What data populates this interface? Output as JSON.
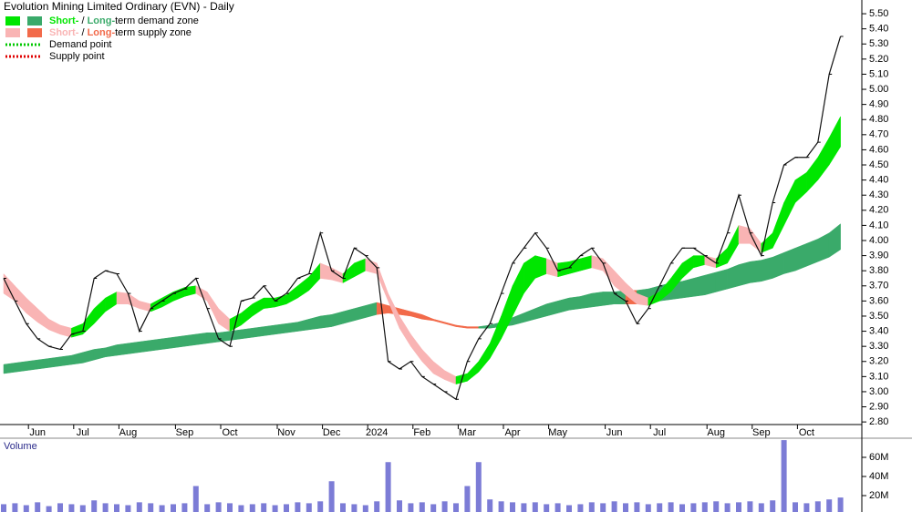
{
  "chart_data": {
    "type": "stock",
    "title": "Evolution Mining Limited Ordinary (EVN) - Daily",
    "legend": [
      {
        "short": "Short-",
        "sep": " / ",
        "long": "Long-",
        "rest": "term demand zone",
        "short_color": "#00e600",
        "long_color": "#3aaa6a"
      },
      {
        "short": "Short-",
        "sep": " / ",
        "long": "Long-",
        "rest": "term supply zone",
        "short_color": "#f9b4b4",
        "long_color": "#f26a4a"
      },
      {
        "label": "Demand point",
        "color": "#00c800"
      },
      {
        "label": "Supply point",
        "color": "#e00000"
      }
    ],
    "categories": [
      null,
      null,
      null,
      "Jun",
      null,
      null,
      null,
      "Jul",
      null,
      null,
      null,
      "Aug",
      null,
      null,
      null,
      null,
      "Sep",
      null,
      null,
      null,
      "Oct",
      null,
      null,
      null,
      null,
      "Nov",
      null,
      null,
      null,
      "Dec",
      null,
      null,
      null,
      "2024",
      null,
      null,
      null,
      "Feb",
      null,
      null,
      null,
      "Mar",
      null,
      null,
      null,
      "Apr",
      null,
      null,
      null,
      "May",
      null,
      null,
      null,
      null,
      "Jun",
      null,
      null,
      null,
      "Jul",
      null,
      null,
      null,
      null,
      "Aug",
      null,
      null,
      null,
      "Sep",
      null,
      null,
      null,
      "Oct",
      null,
      null,
      null
    ],
    "close": [
      3.75,
      3.6,
      3.45,
      3.35,
      3.3,
      3.28,
      3.38,
      3.4,
      3.75,
      3.8,
      3.78,
      3.65,
      3.4,
      3.55,
      3.6,
      3.65,
      3.68,
      3.75,
      3.55,
      3.35,
      3.3,
      3.6,
      3.62,
      3.7,
      3.6,
      3.65,
      3.75,
      3.78,
      4.05,
      3.8,
      3.75,
      3.95,
      3.9,
      3.82,
      3.2,
      3.15,
      3.2,
      3.1,
      3.05,
      3.0,
      2.95,
      3.2,
      3.35,
      3.45,
      3.65,
      3.85,
      3.95,
      4.05,
      3.95,
      3.8,
      3.82,
      3.9,
      3.95,
      3.85,
      3.65,
      3.6,
      3.45,
      3.55,
      3.7,
      3.85,
      3.95,
      3.95,
      3.9,
      3.85,
      4.05,
      4.3,
      4.05,
      3.9,
      4.25,
      4.5,
      4.55,
      4.55,
      4.65,
      5.1,
      5.35
    ],
    "short_upper": [
      3.78,
      3.7,
      3.62,
      3.55,
      3.48,
      3.44,
      3.42,
      3.45,
      3.55,
      3.62,
      3.66,
      3.65,
      3.6,
      3.58,
      3.62,
      3.66,
      3.69,
      3.7,
      3.66,
      3.55,
      3.48,
      3.52,
      3.58,
      3.62,
      3.62,
      3.64,
      3.7,
      3.76,
      3.85,
      3.82,
      3.78,
      3.85,
      3.88,
      3.85,
      3.65,
      3.5,
      3.38,
      3.28,
      3.2,
      3.14,
      3.1,
      3.12,
      3.2,
      3.32,
      3.5,
      3.7,
      3.85,
      3.9,
      3.88,
      3.85,
      3.86,
      3.88,
      3.9,
      3.88,
      3.8,
      3.72,
      3.65,
      3.62,
      3.66,
      3.75,
      3.85,
      3.9,
      3.9,
      3.88,
      3.95,
      4.1,
      4.08,
      3.98,
      4.05,
      4.25,
      4.4,
      4.45,
      4.55,
      4.68,
      4.82
    ],
    "short_lower": [
      3.65,
      3.6,
      3.52,
      3.46,
      3.41,
      3.38,
      3.36,
      3.38,
      3.45,
      3.53,
      3.58,
      3.58,
      3.55,
      3.53,
      3.56,
      3.6,
      3.63,
      3.65,
      3.6,
      3.45,
      3.4,
      3.44,
      3.5,
      3.55,
      3.56,
      3.58,
      3.62,
      3.67,
      3.75,
      3.74,
      3.72,
      3.76,
      3.8,
      3.78,
      3.6,
      3.42,
      3.3,
      3.2,
      3.12,
      3.08,
      3.05,
      3.07,
      3.13,
      3.22,
      3.35,
      3.5,
      3.65,
      3.75,
      3.78,
      3.76,
      3.78,
      3.8,
      3.82,
      3.8,
      3.7,
      3.64,
      3.58,
      3.57,
      3.6,
      3.66,
      3.75,
      3.82,
      3.84,
      3.82,
      3.85,
      3.98,
      3.98,
      3.92,
      3.95,
      4.1,
      4.25,
      4.32,
      4.4,
      4.5,
      4.62
    ],
    "long_upper": [
      3.18,
      3.19,
      3.2,
      3.21,
      3.22,
      3.23,
      3.24,
      3.26,
      3.28,
      3.29,
      3.31,
      3.32,
      3.33,
      3.34,
      3.35,
      3.36,
      3.37,
      3.38,
      3.39,
      3.39,
      3.4,
      3.41,
      3.42,
      3.43,
      3.44,
      3.45,
      3.46,
      3.48,
      3.5,
      3.51,
      3.53,
      3.55,
      3.57,
      3.59,
      3.57,
      3.55,
      3.53,
      3.51,
      3.48,
      3.46,
      3.44,
      3.43,
      3.43,
      3.44,
      3.46,
      3.49,
      3.52,
      3.55,
      3.58,
      3.6,
      3.62,
      3.63,
      3.65,
      3.66,
      3.66,
      3.67,
      3.67,
      3.68,
      3.7,
      3.72,
      3.73,
      3.75,
      3.77,
      3.79,
      3.81,
      3.84,
      3.86,
      3.87,
      3.89,
      3.92,
      3.95,
      3.98,
      4.01,
      4.05,
      4.11
    ],
    "long_lower": [
      3.12,
      3.13,
      3.14,
      3.15,
      3.16,
      3.17,
      3.18,
      3.19,
      3.21,
      3.23,
      3.24,
      3.25,
      3.26,
      3.27,
      3.28,
      3.29,
      3.3,
      3.31,
      3.32,
      3.33,
      3.34,
      3.35,
      3.36,
      3.37,
      3.38,
      3.39,
      3.4,
      3.41,
      3.42,
      3.43,
      3.45,
      3.47,
      3.49,
      3.51,
      3.52,
      3.51,
      3.5,
      3.48,
      3.47,
      3.45,
      3.43,
      3.42,
      3.42,
      3.42,
      3.43,
      3.44,
      3.46,
      3.48,
      3.5,
      3.52,
      3.54,
      3.55,
      3.56,
      3.57,
      3.58,
      3.58,
      3.58,
      3.59,
      3.6,
      3.61,
      3.62,
      3.63,
      3.64,
      3.66,
      3.68,
      3.7,
      3.72,
      3.73,
      3.75,
      3.78,
      3.8,
      3.83,
      3.86,
      3.89,
      3.94
    ],
    "ylim": [
      2.74,
      5.53
    ],
    "yticks": [
      {
        "value": 2.8,
        "label": "2.80"
      },
      {
        "value": 2.9,
        "label": "2.90"
      },
      {
        "value": 3.0,
        "label": "3.00"
      },
      {
        "value": 3.1,
        "label": "3.10"
      },
      {
        "value": 3.2,
        "label": "3.20"
      },
      {
        "value": 3.3,
        "label": "3.30"
      },
      {
        "value": 3.4,
        "label": "3.40"
      },
      {
        "value": 3.5,
        "label": "3.50"
      },
      {
        "value": 3.6,
        "label": "3.60"
      },
      {
        "value": 3.7,
        "label": "3.70"
      },
      {
        "value": 3.8,
        "label": "3.80"
      },
      {
        "value": 3.9,
        "label": "3.90"
      },
      {
        "value": 4.0,
        "label": "4.00"
      },
      {
        "value": 4.1,
        "label": "4.10"
      },
      {
        "value": 4.2,
        "label": "4.20"
      },
      {
        "value": 4.3,
        "label": "4.30"
      },
      {
        "value": 4.4,
        "label": "4.40"
      },
      {
        "value": 4.5,
        "label": "4.50"
      },
      {
        "value": 4.6,
        "label": "4.60"
      },
      {
        "value": 4.7,
        "label": "4.70"
      },
      {
        "value": 4.8,
        "label": "4.80"
      },
      {
        "value": 4.9,
        "label": "4.90"
      },
      {
        "value": 5.0,
        "label": "5.00"
      },
      {
        "value": 5.1,
        "label": "5.10"
      },
      {
        "value": 5.2,
        "label": "5.20"
      },
      {
        "value": 5.3,
        "label": "5.30"
      },
      {
        "value": 5.4,
        "label": "5.40"
      },
      {
        "value": 5.5,
        "label": "5.50"
      }
    ],
    "volume": {
      "label": "Volume",
      "color": "#5050c8",
      "values": [
        11000000,
        12000000,
        10000000,
        13000000,
        9000000,
        12000000,
        11000000,
        10000000,
        15000000,
        12000000,
        11000000,
        10000000,
        13000000,
        12000000,
        10000000,
        11000000,
        12000000,
        30000000,
        11000000,
        13000000,
        12000000,
        10000000,
        11000000,
        12000000,
        10000000,
        11000000,
        13000000,
        12000000,
        14000000,
        35000000,
        12000000,
        11000000,
        10000000,
        14000000,
        55000000,
        15000000,
        12000000,
        13000000,
        11000000,
        14000000,
        12000000,
        30000000,
        55000000,
        16000000,
        14000000,
        13000000,
        12000000,
        13000000,
        11000000,
        12000000,
        10000000,
        11000000,
        13000000,
        12000000,
        14000000,
        12000000,
        13000000,
        11000000,
        12000000,
        13000000,
        11000000,
        12000000,
        13000000,
        14000000,
        12000000,
        13000000,
        14000000,
        12000000,
        15000000,
        78000000,
        13000000,
        12000000,
        14000000,
        16000000,
        18000000
      ],
      "ylim": [
        0,
        78000000
      ],
      "yticks": [
        {
          "value": 20000000,
          "label": "20M"
        },
        {
          "value": 40000000,
          "label": "40M"
        },
        {
          "value": 60000000,
          "label": "60M"
        }
      ]
    }
  }
}
